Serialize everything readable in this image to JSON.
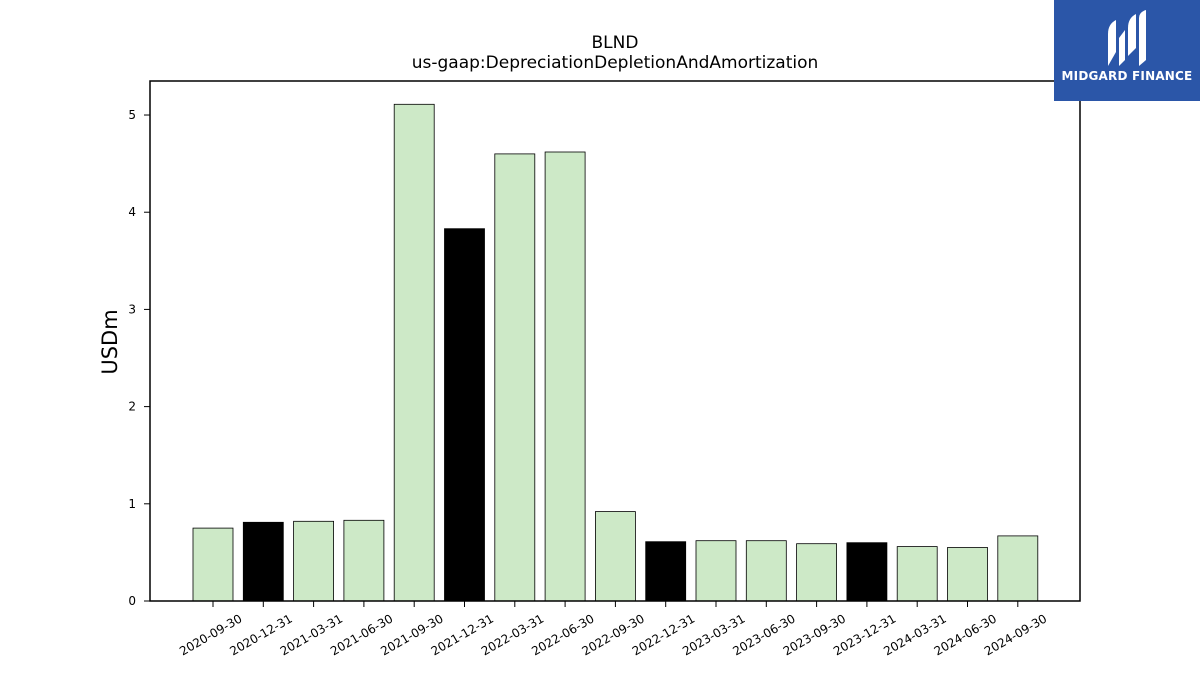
{
  "chart_data": {
    "type": "bar",
    "title": "BLND",
    "subtitle": "us-gaap:DepreciationDepletionAndAmortization",
    "xlabel": "",
    "ylabel": "USDm",
    "ylim": [
      0,
      5.35
    ],
    "yticks": [
      0,
      1,
      2,
      3,
      4,
      5
    ],
    "grid": false,
    "categories": [
      "2020-09-30",
      "2020-12-31",
      "2021-03-31",
      "2021-06-30",
      "2021-09-30",
      "2021-12-31",
      "2022-03-31",
      "2022-06-30",
      "2022-09-30",
      "2022-12-31",
      "2023-03-31",
      "2023-06-30",
      "2023-09-30",
      "2023-12-31",
      "2024-03-31",
      "2024-06-30",
      "2024-09-30"
    ],
    "values": [
      0.75,
      0.81,
      0.82,
      0.83,
      5.11,
      3.83,
      4.6,
      4.62,
      0.92,
      0.61,
      0.62,
      0.62,
      0.59,
      0.6,
      0.56,
      0.55,
      0.67
    ],
    "colors": {
      "quarter": "#cde9c7",
      "year_end": "#000000",
      "edge": "#000000"
    }
  },
  "logo": {
    "text": "MIDGARD FINANCE",
    "background": "#2b56a8"
  }
}
